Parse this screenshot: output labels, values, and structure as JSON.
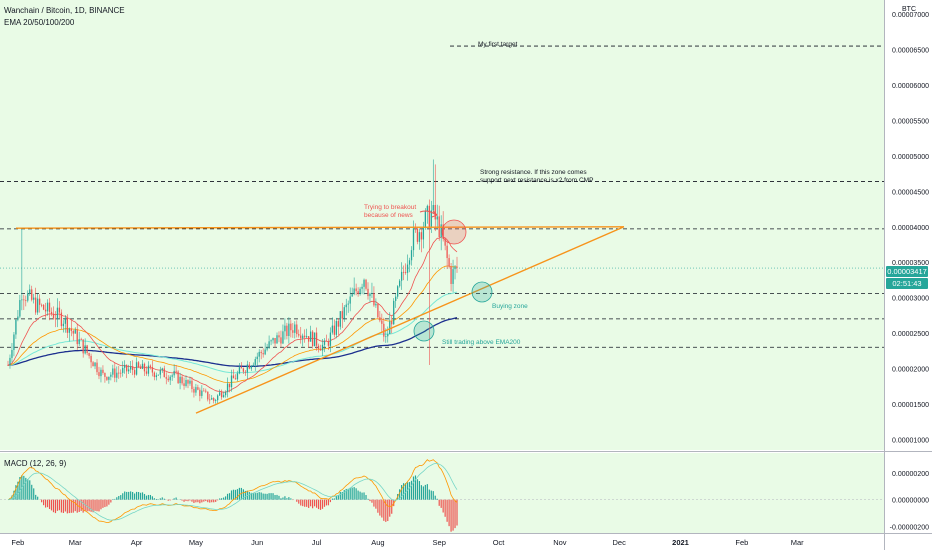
{
  "header": {
    "title": "Wanchain / Bitcoin, 1D, BINANCE",
    "indicator": "EMA 20/50/100/200",
    "macd_label": "MACD (12, 26, 9)",
    "currency": "BTC"
  },
  "colors": {
    "background": "#e9fbe6",
    "up": "#26a69a",
    "down": "#ef5350",
    "trendline": "#f7931a",
    "ema20": "#ef5350",
    "ema50": "#ff9800",
    "ema100": "#76e7d6",
    "ema200": "#1c2f8e",
    "macd_line": "#ff9800",
    "signal_line": "#76d6c7"
  },
  "price_axis": {
    "ticks": [
      "0.00007000",
      "0.00006500",
      "0.00006000",
      "0.00005500",
      "0.00005000",
      "0.00004500",
      "0.00004000",
      "0.00003500",
      "0.00003000",
      "0.00002500",
      "0.00002000",
      "0.00001500",
      "0.00001000"
    ]
  },
  "macd_axis": {
    "ticks": [
      "0.00000200",
      "0.00000000",
      "-0.00000200"
    ]
  },
  "time_axis": {
    "labels": [
      "Feb",
      "Mar",
      "Apr",
      "May",
      "Jun",
      "Jul",
      "Aug",
      "Sep",
      "Oct",
      "Nov",
      "Dec",
      "2021",
      "Feb",
      "Mar"
    ]
  },
  "last_price": {
    "value": "0.00003417",
    "countdown": "02:51:43"
  },
  "annotations": {
    "first_target": "My first target",
    "resistance_line1": "Strong resistance.  If this zone comes",
    "resistance_line2": "support next resistance is x2 from CMP",
    "breakout_line1": "Trying to breakout",
    "breakout_line2": "because of news",
    "buying_zone": "Buying zone",
    "ema200_note": "Still trading above EMA200"
  },
  "chart_data": {
    "type": "candlestick",
    "title": "Wanchain / Bitcoin, 1D, BINANCE",
    "ylim": [
      8.5e-06,
      7.2e-05
    ],
    "x_range": [
      "2020-01-27",
      "2021-03-31"
    ],
    "closes_approx": [
      {
        "date": "2020-01-27",
        "close": 2.05e-05
      },
      {
        "date": "2020-02-03",
        "close": 3.1e-05
      },
      {
        "date": "2020-02-10",
        "close": 2.9e-05
      },
      {
        "date": "2020-02-24",
        "close": 2.7e-05
      },
      {
        "date": "2020-03-05",
        "close": 2.3e-05
      },
      {
        "date": "2020-03-15",
        "close": 1.9e-05
      },
      {
        "date": "2020-04-01",
        "close": 2e-05
      },
      {
        "date": "2020-04-20",
        "close": 1.9e-05
      },
      {
        "date": "2020-05-01",
        "close": 1.7e-05
      },
      {
        "date": "2020-05-10",
        "close": 1.55e-05
      },
      {
        "date": "2020-05-25",
        "close": 2e-05
      },
      {
        "date": "2020-06-10",
        "close": 2.4e-05
      },
      {
        "date": "2020-06-20",
        "close": 2.6e-05
      },
      {
        "date": "2020-07-05",
        "close": 2.3e-05
      },
      {
        "date": "2020-07-25",
        "close": 3.3e-05
      },
      {
        "date": "2020-08-05",
        "close": 2.4e-05
      },
      {
        "date": "2020-08-18",
        "close": 3.8e-05
      },
      {
        "date": "2020-08-28",
        "close": 4.2e-05
      },
      {
        "date": "2020-09-01",
        "close": 4e-05
      },
      {
        "date": "2020-09-07",
        "close": 3.3e-05
      },
      {
        "date": "2020-09-10",
        "close": 3.42e-05
      }
    ],
    "horizontal_levels": [
      6.55e-05,
      4.64e-05,
      3.97e-05,
      3.06e-05,
      2.7e-05,
      2.3e-05
    ],
    "ema_values_at_end": {
      "ema20": 3.5e-05,
      "ema50": 3.2e-05,
      "ema100": 3e-05,
      "ema200": 2.72e-05
    },
    "macd": {
      "ylim": [
        -2.5e-06,
        3.5e-06
      ],
      "series": [
        {
          "name": "MACD"
        },
        {
          "name": "Signal"
        },
        {
          "name": "Histogram"
        }
      ]
    }
  }
}
